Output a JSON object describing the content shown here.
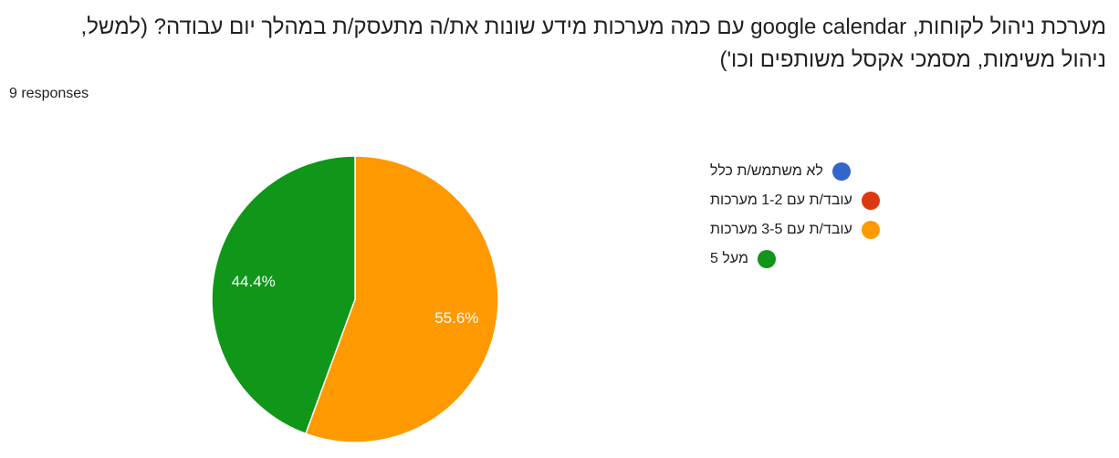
{
  "question": {
    "line1": "מערכת ניהול לקוחות, google calendar עם כמה מערכות מידע שונות את/ה מתעסק/ת במהלך יום עבודה? (למשל,",
    "line2": "ניהול משימות, מסמכי אקסל משותפים וכו')",
    "responses": "9 responses"
  },
  "chart_data": {
    "type": "pie",
    "categories": [
      "לא משתמש/ת כלל",
      "עובד/ת עם 1-2 מערכות",
      "עובד/ת עם 3-5 מערכות",
      "מעל 5"
    ],
    "values": [
      0,
      0,
      55.6,
      44.4
    ],
    "labels": [
      "",
      "",
      "55.6%",
      "44.4%"
    ],
    "colors": [
      "#3366cc",
      "#dc3912",
      "#ff9900",
      "#109618"
    ],
    "legend_position": "right"
  }
}
